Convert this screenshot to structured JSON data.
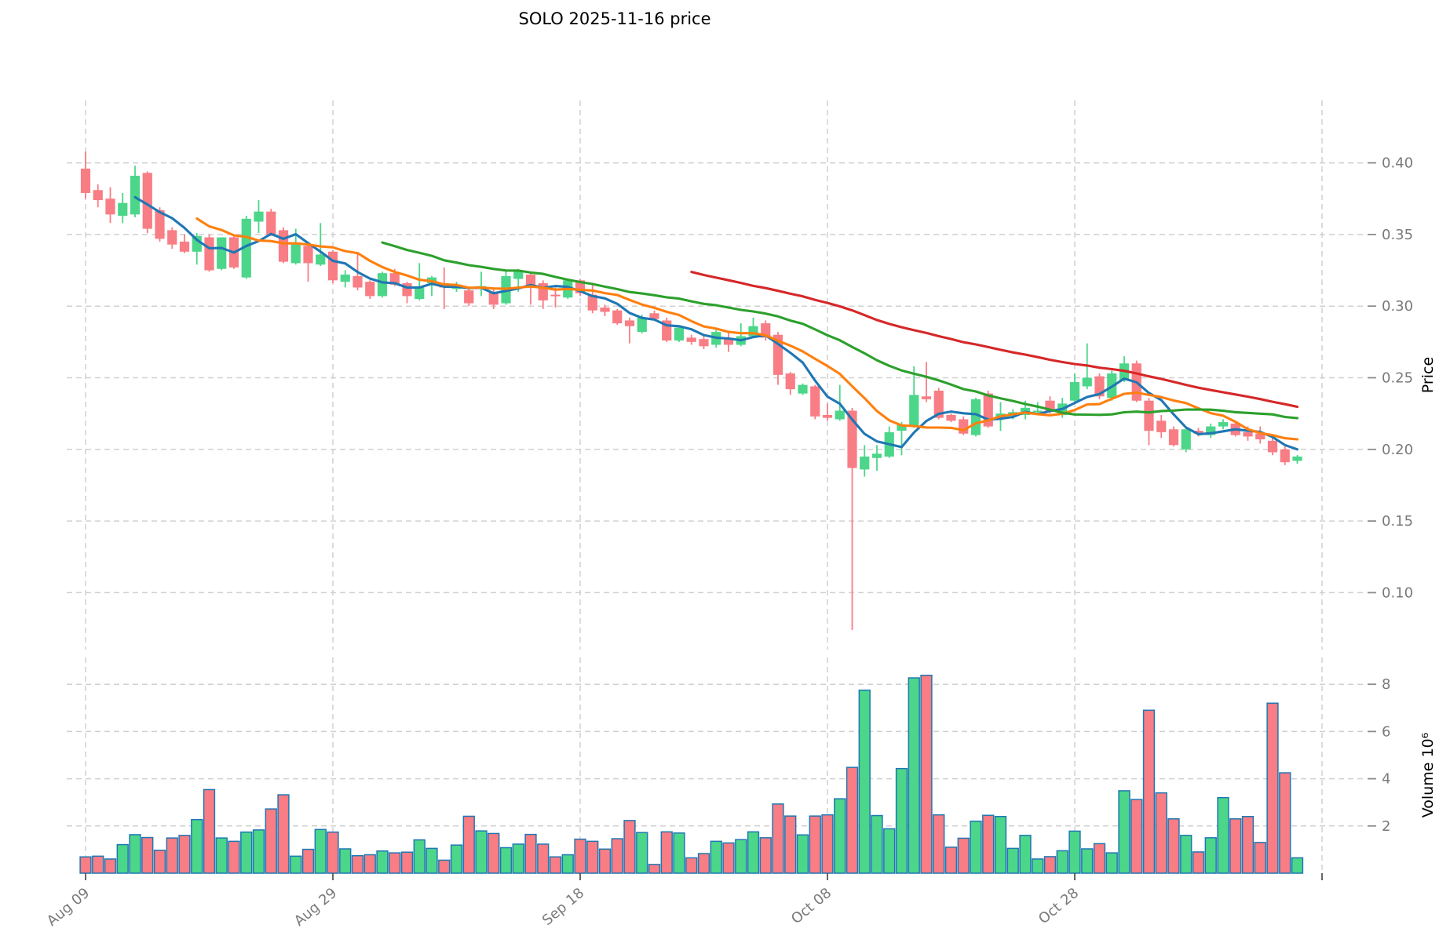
{
  "title": "SOLO  2025-11-16  price",
  "price_axis": {
    "label": "Price",
    "tick_labels": [
      "0.10",
      "0.15",
      "0.20",
      "0.25",
      "0.30",
      "0.35",
      "0.40"
    ],
    "tick_values": [
      0.1,
      0.15,
      0.2,
      0.25,
      0.3,
      0.35,
      0.4
    ],
    "ylim": [
      0.065,
      0.443
    ]
  },
  "volume_axis": {
    "label": "Volume  10⁶",
    "tick_labels": [
      "2",
      "4",
      "6",
      "8"
    ],
    "tick_values": [
      2,
      4,
      6,
      8
    ],
    "ylim": [
      0,
      9.1
    ]
  },
  "x_axis": {
    "tick_indices": [
      0,
      20,
      40,
      60,
      80,
      100
    ],
    "tick_labels": [
      "Aug 09",
      "Aug 29",
      "Sep 18",
      "Oct 08",
      "Oct 28",
      ""
    ]
  },
  "colors": {
    "up": "#4bd689",
    "down": "#f87d84",
    "volume_edge": "#1f77b4",
    "ma5": "#1f77b4",
    "ma10": "#ff7f0e",
    "ma25": "#2ca02c",
    "ma50": "#d62728",
    "grid": "#d0d0d0",
    "tick_text": "#7a7a7a",
    "title_text": "#000000"
  },
  "chart_data": {
    "type": "candlestick",
    "note": "OHLC candles with volume subpanel; moving averages of close drawn as lines",
    "moving_averages": [
      {
        "name": "MA5",
        "window": 5,
        "color": "#1f77b4"
      },
      {
        "name": "MA10",
        "window": 10,
        "color": "#ff7f0e"
      },
      {
        "name": "MA25",
        "window": 25,
        "color": "#2ca02c"
      },
      {
        "name": "MA50",
        "window": 50,
        "color": "#d62728"
      }
    ],
    "candles_ohlc": [
      [
        0.396,
        0.408,
        0.375,
        0.379
      ],
      [
        0.381,
        0.385,
        0.369,
        0.374
      ],
      [
        0.375,
        0.383,
        0.358,
        0.364
      ],
      [
        0.363,
        0.379,
        0.358,
        0.372
      ],
      [
        0.364,
        0.398,
        0.362,
        0.391
      ],
      [
        0.393,
        0.394,
        0.351,
        0.354
      ],
      [
        0.367,
        0.369,
        0.345,
        0.347
      ],
      [
        0.353,
        0.355,
        0.34,
        0.343
      ],
      [
        0.345,
        0.35,
        0.337,
        0.338
      ],
      [
        0.338,
        0.351,
        0.329,
        0.349
      ],
      [
        0.348,
        0.35,
        0.324,
        0.325
      ],
      [
        0.326,
        0.348,
        0.325,
        0.348
      ],
      [
        0.348,
        0.349,
        0.326,
        0.327
      ],
      [
        0.32,
        0.363,
        0.319,
        0.361
      ],
      [
        0.359,
        0.374,
        0.351,
        0.366
      ],
      [
        0.366,
        0.368,
        0.349,
        0.35
      ],
      [
        0.353,
        0.355,
        0.33,
        0.331
      ],
      [
        0.33,
        0.354,
        0.329,
        0.343
      ],
      [
        0.342,
        0.344,
        0.317,
        0.33
      ],
      [
        0.329,
        0.358,
        0.328,
        0.336
      ],
      [
        0.338,
        0.339,
        0.316,
        0.318
      ],
      [
        0.317,
        0.325,
        0.313,
        0.322
      ],
      [
        0.321,
        0.337,
        0.311,
        0.313
      ],
      [
        0.317,
        0.318,
        0.305,
        0.307
      ],
      [
        0.307,
        0.324,
        0.306,
        0.323
      ],
      [
        0.323,
        0.326,
        0.314,
        0.315
      ],
      [
        0.316,
        0.317,
        0.302,
        0.307
      ],
      [
        0.305,
        0.33,
        0.304,
        0.313
      ],
      [
        0.316,
        0.321,
        0.307,
        0.32
      ],
      [
        0.316,
        0.327,
        0.298,
        0.313
      ],
      [
        0.312,
        0.317,
        0.31,
        0.315
      ],
      [
        0.311,
        0.312,
        0.3,
        0.302
      ],
      [
        0.312,
        0.324,
        0.307,
        0.314
      ],
      [
        0.31,
        0.312,
        0.298,
        0.301
      ],
      [
        0.302,
        0.325,
        0.301,
        0.321
      ],
      [
        0.319,
        0.326,
        0.31,
        0.324
      ],
      [
        0.322,
        0.324,
        0.301,
        0.314
      ],
      [
        0.316,
        0.318,
        0.298,
        0.304
      ],
      [
        0.308,
        0.313,
        0.299,
        0.307
      ],
      [
        0.306,
        0.319,
        0.305,
        0.318
      ],
      [
        0.318,
        0.319,
        0.307,
        0.309
      ],
      [
        0.308,
        0.316,
        0.295,
        0.297
      ],
      [
        0.299,
        0.301,
        0.293,
        0.296
      ],
      [
        0.297,
        0.298,
        0.287,
        0.288
      ],
      [
        0.29,
        0.292,
        0.274,
        0.286
      ],
      [
        0.282,
        0.294,
        0.281,
        0.292
      ],
      [
        0.295,
        0.297,
        0.29,
        0.291
      ],
      [
        0.29,
        0.292,
        0.275,
        0.276
      ],
      [
        0.276,
        0.286,
        0.275,
        0.285
      ],
      [
        0.278,
        0.28,
        0.273,
        0.275
      ],
      [
        0.277,
        0.279,
        0.27,
        0.272
      ],
      [
        0.273,
        0.285,
        0.271,
        0.282
      ],
      [
        0.278,
        0.282,
        0.268,
        0.273
      ],
      [
        0.273,
        0.288,
        0.272,
        0.279
      ],
      [
        0.279,
        0.292,
        0.278,
        0.286
      ],
      [
        0.288,
        0.29,
        0.276,
        0.278
      ],
      [
        0.28,
        0.282,
        0.245,
        0.252
      ],
      [
        0.253,
        0.254,
        0.238,
        0.242
      ],
      [
        0.239,
        0.246,
        0.238,
        0.245
      ],
      [
        0.244,
        0.245,
        0.221,
        0.223
      ],
      [
        0.224,
        0.232,
        0.22,
        0.222
      ],
      [
        0.221,
        0.245,
        0.22,
        0.227
      ],
      [
        0.227,
        0.229,
        0.074,
        0.187
      ],
      [
        0.186,
        0.203,
        0.181,
        0.195
      ],
      [
        0.194,
        0.203,
        0.185,
        0.197
      ],
      [
        0.195,
        0.216,
        0.194,
        0.212
      ],
      [
        0.213,
        0.219,
        0.196,
        0.217
      ],
      [
        0.216,
        0.258,
        0.215,
        0.238
      ],
      [
        0.237,
        0.261,
        0.233,
        0.235
      ],
      [
        0.241,
        0.243,
        0.221,
        0.222
      ],
      [
        0.224,
        0.225,
        0.219,
        0.22
      ],
      [
        0.221,
        0.223,
        0.21,
        0.211
      ],
      [
        0.21,
        0.236,
        0.209,
        0.235
      ],
      [
        0.239,
        0.241,
        0.215,
        0.216
      ],
      [
        0.222,
        0.233,
        0.213,
        0.225
      ],
      [
        0.224,
        0.228,
        0.221,
        0.226
      ],
      [
        0.224,
        0.234,
        0.221,
        0.229
      ],
      [
        0.226,
        0.233,
        0.224,
        0.227
      ],
      [
        0.234,
        0.237,
        0.225,
        0.227
      ],
      [
        0.224,
        0.236,
        0.222,
        0.232
      ],
      [
        0.234,
        0.253,
        0.232,
        0.247
      ],
      [
        0.244,
        0.274,
        0.242,
        0.25
      ],
      [
        0.251,
        0.253,
        0.235,
        0.237
      ],
      [
        0.236,
        0.255,
        0.234,
        0.253
      ],
      [
        0.248,
        0.265,
        0.247,
        0.26
      ],
      [
        0.26,
        0.262,
        0.233,
        0.234
      ],
      [
        0.234,
        0.236,
        0.203,
        0.213
      ],
      [
        0.22,
        0.224,
        0.208,
        0.212
      ],
      [
        0.214,
        0.216,
        0.202,
        0.203
      ],
      [
        0.2,
        0.215,
        0.198,
        0.214
      ],
      [
        0.213,
        0.215,
        0.209,
        0.211
      ],
      [
        0.21,
        0.218,
        0.208,
        0.216
      ],
      [
        0.216,
        0.221,
        0.214,
        0.219
      ],
      [
        0.218,
        0.22,
        0.209,
        0.21
      ],
      [
        0.212,
        0.216,
        0.206,
        0.209
      ],
      [
        0.211,
        0.216,
        0.204,
        0.207
      ],
      [
        0.206,
        0.208,
        0.196,
        0.198
      ],
      [
        0.2,
        0.202,
        0.189,
        0.191
      ],
      [
        0.192,
        0.196,
        0.19,
        0.195
      ]
    ],
    "volumes_millions": [
      0.69,
      0.72,
      0.6,
      1.21,
      1.63,
      1.51,
      0.97,
      1.49,
      1.6,
      2.27,
      3.54,
      1.49,
      1.35,
      1.74,
      1.83,
      2.72,
      3.32,
      0.72,
      1.01,
      1.85,
      1.74,
      1.03,
      0.74,
      0.78,
      0.94,
      0.86,
      0.89,
      1.41,
      1.05,
      0.55,
      1.19,
      2.41,
      1.79,
      1.68,
      1.08,
      1.23,
      1.64,
      1.23,
      0.69,
      0.78,
      1.44,
      1.35,
      1.02,
      1.46,
      2.23,
      1.72,
      0.37,
      1.75,
      1.7,
      0.65,
      0.83,
      1.35,
      1.28,
      1.42,
      1.75,
      1.5,
      2.93,
      2.42,
      1.62,
      2.42,
      2.47,
      3.15,
      4.48,
      7.75,
      2.44,
      1.88,
      4.43,
      8.27,
      8.38,
      2.47,
      1.1,
      1.48,
      2.2,
      2.45,
      2.4,
      1.05,
      1.6,
      0.6,
      0.7,
      0.95,
      1.78,
      1.03,
      1.25,
      0.86,
      3.49,
      3.12,
      6.9,
      3.4,
      2.3,
      1.6,
      0.9,
      1.5,
      3.2,
      2.3,
      2.4,
      1.3,
      7.2,
      4.25,
      0.65
    ]
  }
}
